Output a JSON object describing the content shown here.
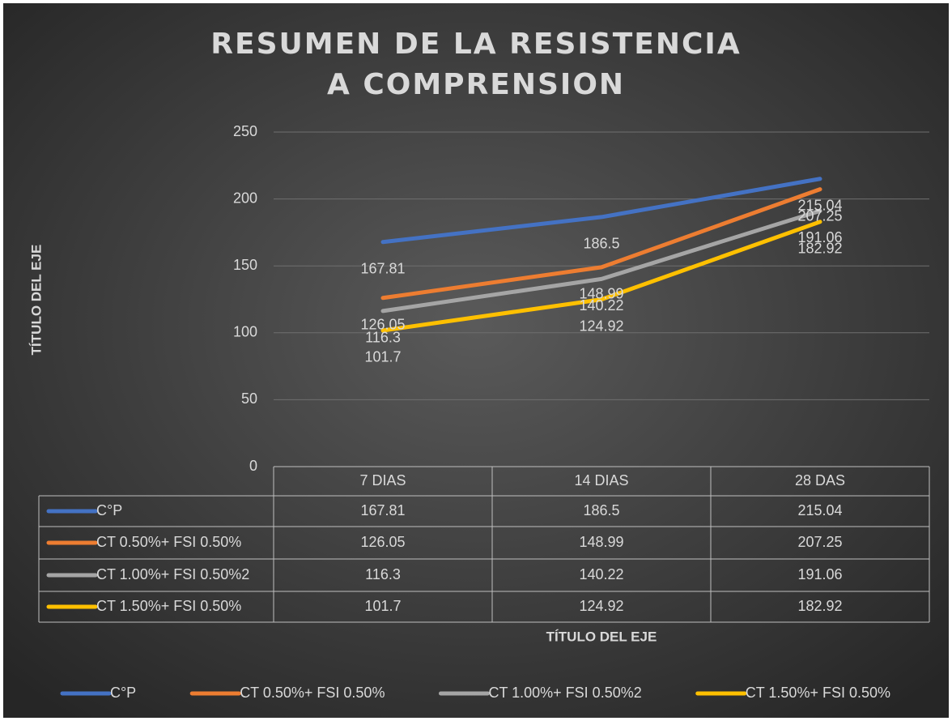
{
  "chart_data": {
    "type": "line",
    "title": "RESUMEN DE LA RESISTENCIA A COMPRENSION",
    "y_label": "TÍTULO DEL EJE",
    "x_label": "TÍTULO DEL EJE",
    "categories": [
      "7 DIAS",
      "14 DIAS",
      "28 DAS"
    ],
    "series": [
      {
        "name": "C°P",
        "color": "#4472c4",
        "values": [
          167.81,
          186.5,
          215.04
        ]
      },
      {
        "name": "CT 0.50%+ FSI 0.50%",
        "color": "#ed7d31",
        "values": [
          126.05,
          148.99,
          207.25
        ]
      },
      {
        "name": "CT 1.00%+ FSI 0.50%2",
        "color": "#a5a5a5",
        "values": [
          116.3,
          140.22,
          191.06
        ]
      },
      {
        "name": "CT 1.50%+ FSI 0.50%",
        "color": "#ffc000",
        "values": [
          101.7,
          124.92,
          182.92
        ]
      }
    ],
    "ylim": [
      0,
      250
    ],
    "yticks": [
      0,
      50,
      100,
      150,
      200,
      250
    ],
    "grid": true,
    "legend": "bottom"
  }
}
